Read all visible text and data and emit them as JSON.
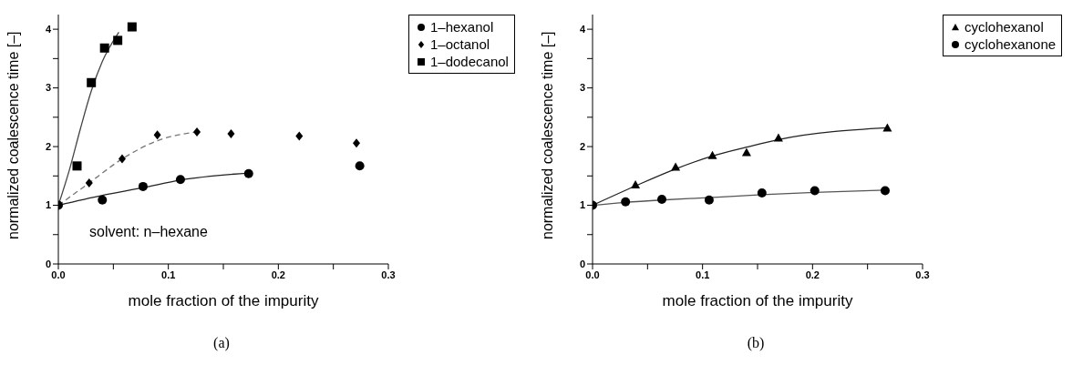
{
  "chart_data": [
    {
      "type": "scatter",
      "xlabel": "mole fraction of the impurity",
      "ylabel": "normalized coalescence time [–]",
      "xlim": [
        0,
        0.3
      ],
      "ylim": [
        0,
        4.25
      ],
      "xticks": [
        {
          "value": 0,
          "label": "0.0"
        },
        {
          "value": 0.05,
          "label": null
        },
        0.1,
        {
          "value": 0.15,
          "label": null
        },
        0.2,
        {
          "value": 0.25,
          "label": null
        },
        0.3
      ],
      "yticks": [
        0,
        {
          "value": 0.5,
          "label": null
        },
        1,
        {
          "value": 1.5,
          "label": null
        },
        2,
        {
          "value": 2.5,
          "label": null
        },
        3,
        {
          "value": 3.5,
          "label": null
        },
        4
      ],
      "legend": "top right",
      "annotations": [
        "solvent: n–hexane",
        "(a)"
      ],
      "series": [
        {
          "name": "1–hexanol",
          "marker": "circle",
          "color": "#000000",
          "x": [
            0,
            0.04,
            0.077,
            0.111,
            0.173,
            0.274
          ],
          "values": [
            1,
            1.09,
            1.32,
            1.44,
            1.54,
            1.67
          ]
        },
        {
          "name": "1–octanol",
          "marker": "diamond",
          "color": "#000000",
          "x": [
            0.028,
            0.058,
            0.09,
            0.126,
            0.157,
            0.219,
            0.271
          ],
          "values": [
            1.38,
            1.79,
            2.2,
            2.25,
            2.22,
            2.18,
            2.06
          ]
        },
        {
          "name": "1–dodecanol",
          "marker": "square",
          "color": "#000000",
          "x": [
            0.017,
            0.03,
            0.042,
            0.054,
            0.067
          ],
          "values": [
            1.67,
            3.09,
            3.68,
            3.81,
            4.04
          ]
        },
        {
          "type": "line",
          "line_style": "solid",
          "color": "#222222",
          "x": [
            0,
            0.04,
            0.077,
            0.111,
            0.173
          ],
          "values": [
            1,
            1.17,
            1.3,
            1.43,
            1.55
          ]
        },
        {
          "type": "line",
          "line_style": "dashed",
          "color": "#777777",
          "x": [
            0,
            0.028,
            0.058,
            0.09,
            0.126
          ],
          "values": [
            1,
            1.38,
            1.79,
            2.1,
            2.25
          ]
        },
        {
          "type": "line",
          "line_style": "solid",
          "color": "#444444",
          "x": [
            0,
            0.01,
            0.02,
            0.03,
            0.04,
            0.055
          ],
          "values": [
            1,
            1.6,
            2.3,
            2.95,
            3.45,
            3.95
          ]
        }
      ]
    },
    {
      "type": "scatter",
      "xlabel": "mole fraction of the impurity",
      "ylabel": "normalized coalescence time  [–]",
      "xlim": [
        0,
        0.3
      ],
      "ylim": [
        0,
        4.25
      ],
      "xticks": [
        {
          "value": 0,
          "label": "0.0"
        },
        {
          "value": 0.05,
          "label": null
        },
        0.1,
        {
          "value": 0.15,
          "label": null
        },
        0.2,
        {
          "value": 0.25,
          "label": null
        },
        0.3
      ],
      "yticks": [
        0,
        {
          "value": 0.5,
          "label": null
        },
        1,
        {
          "value": 1.5,
          "label": null
        },
        2,
        {
          "value": 2.5,
          "label": null
        },
        3,
        {
          "value": 3.5,
          "label": null
        },
        4
      ],
      "legend": "top right",
      "annotations": [
        "(b)"
      ],
      "series": [
        {
          "name": "cyclohexanol",
          "marker": "triangle",
          "color": "#000000",
          "x": [
            0.039,
            0.0755,
            0.109,
            0.14,
            0.169,
            0.268
          ],
          "values": [
            1.35,
            1.65,
            1.85,
            1.9,
            2.15,
            2.32
          ]
        },
        {
          "name": "cyclohexanone",
          "marker": "circle",
          "color": "#000000",
          "x": [
            0,
            0.03,
            0.063,
            0.106,
            0.154,
            0.202,
            0.266
          ],
          "values": [
            1,
            1.06,
            1.1,
            1.09,
            1.21,
            1.25,
            1.25
          ]
        },
        {
          "type": "line",
          "line_style": "solid",
          "color": "#222222",
          "x": [
            0,
            0.039,
            0.0755,
            0.109,
            0.14,
            0.169,
            0.268
          ],
          "values": [
            1,
            1.33,
            1.62,
            1.84,
            1.99,
            2.12,
            2.32
          ]
        },
        {
          "type": "line",
          "line_style": "solid",
          "color": "#555555",
          "x": [
            0,
            0.03,
            0.063,
            0.106,
            0.154,
            0.202,
            0.266
          ],
          "values": [
            1,
            1.05,
            1.09,
            1.13,
            1.18,
            1.22,
            1.26
          ]
        }
      ]
    }
  ]
}
